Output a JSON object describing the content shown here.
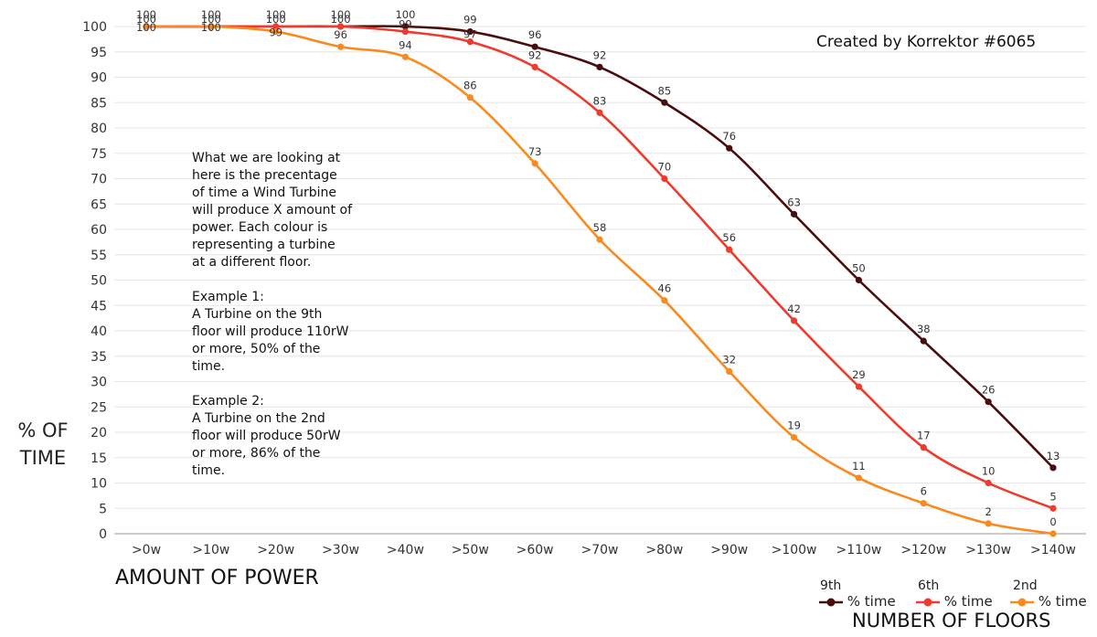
{
  "chart_data": {
    "type": "line",
    "credit": "Created by Korrektor #6065",
    "ylabel_lines": [
      "% OF",
      "TIME"
    ],
    "xlabel": "AMOUNT OF POWER",
    "legend_title": "NUMBER OF FLOORS",
    "ylim": [
      0,
      100
    ],
    "y_ticks": [
      "0",
      "5",
      "10",
      "15",
      "20",
      "25",
      "30",
      "35",
      "40",
      "45",
      "50",
      "55",
      "60",
      "65",
      "70",
      "75",
      "80",
      "85",
      "90",
      "95",
      "100"
    ],
    "categories": [
      ">0w",
      ">10w",
      ">20w",
      ">30w",
      ">40w",
      ">50w",
      ">60w",
      ">70w",
      ">80w",
      ">90w",
      ">100w",
      ">110w",
      ">120w",
      ">130w",
      ">140w"
    ],
    "grid": true,
    "legend_position": "bottom-right",
    "annotation": "What we are looking at here is the precentage of time a Wind Turbine will produce X amount of power. Each colour is representing a turbine at a different floor.\n\nExample 1:\nA Turbine on the 9th floor will produce 110rW or more, 50% of the time.\n\nExample 2:\nA Turbine on the 2nd floor will produce 50rW or more, 86% of the time.",
    "series": [
      {
        "floor": "9th",
        "name": "% time",
        "color": "#4a0d0d",
        "values": [
          100,
          100,
          100,
          100,
          100,
          99,
          96,
          92,
          85,
          76,
          63,
          50,
          38,
          26,
          13
        ]
      },
      {
        "floor": "6th",
        "name": "% time",
        "color": "#ee3b2e",
        "values": [
          100,
          100,
          100,
          100,
          99,
          97,
          92,
          83,
          70,
          56,
          42,
          29,
          17,
          10,
          5
        ]
      },
      {
        "floor": "2nd",
        "name": "% time",
        "color": "#f98a1f",
        "values": [
          100,
          100,
          99,
          96,
          94,
          86,
          73,
          58,
          46,
          32,
          19,
          11,
          6,
          2,
          0
        ]
      }
    ]
  }
}
